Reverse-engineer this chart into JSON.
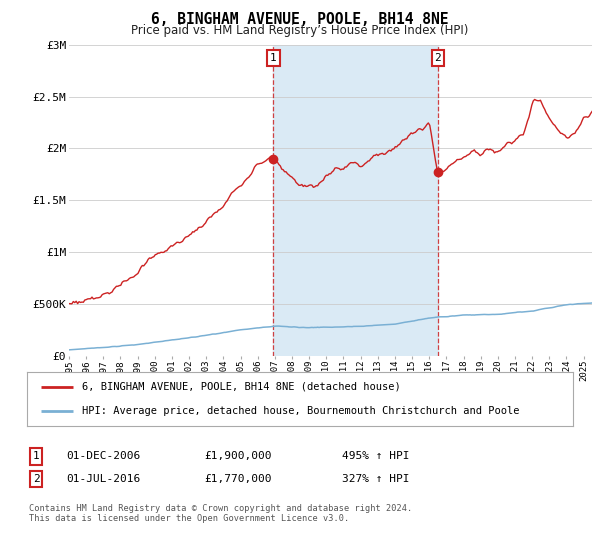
{
  "title": "6, BINGHAM AVENUE, POOLE, BH14 8NE",
  "subtitle": "Price paid vs. HM Land Registry’s House Price Index (HPI)",
  "ylabel_ticks": [
    "£0",
    "£500K",
    "£1M",
    "£1.5M",
    "£2M",
    "£2.5M",
    "£3M"
  ],
  "ylim": [
    0,
    3000000
  ],
  "yticks": [
    0,
    500000,
    1000000,
    1500000,
    2000000,
    2500000,
    3000000
  ],
  "hpi_color": "#7ab0d4",
  "price_color": "#cc2222",
  "shaded_color": "#daeaf5",
  "marker1_year": 2006.917,
  "marker2_year": 2016.5,
  "marker1_price": 1900000,
  "marker2_price": 1770000,
  "legend_line1": "6, BINGHAM AVENUE, POOLE, BH14 8NE (detached house)",
  "legend_line2": "HPI: Average price, detached house, Bournemouth Christchurch and Poole",
  "table_row1": [
    "1",
    "01-DEC-2006",
    "£1,900,000",
    "495% ↑ HPI"
  ],
  "table_row2": [
    "2",
    "01-JUL-2016",
    "£1,770,000",
    "327% ↑ HPI"
  ],
  "footnote": "Contains HM Land Registry data © Crown copyright and database right 2024.\nThis data is licensed under the Open Government Licence v3.0.",
  "background_color": "#ffffff",
  "grid_color": "#cccccc",
  "xmin": 1995,
  "xmax": 2025.5
}
